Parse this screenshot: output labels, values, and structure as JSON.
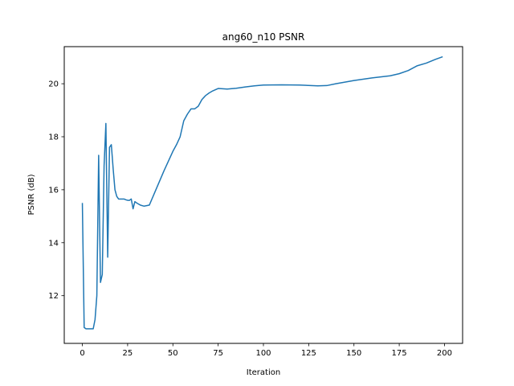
{
  "chart_data": {
    "type": "line",
    "title": "ang60_n10 PSNR",
    "xlabel": "Iteration",
    "ylabel": "PSNR (dB)",
    "xlim": [
      -10,
      210
    ],
    "ylim": [
      10.2,
      21.4
    ],
    "xticks": [
      0,
      25,
      50,
      75,
      100,
      125,
      150,
      175,
      200
    ],
    "yticks": [
      12,
      14,
      16,
      18,
      20
    ],
    "grid": false,
    "series": [
      {
        "color": "#1f77b4",
        "x": [
          0,
          1,
          2,
          3,
          4,
          5,
          6,
          7,
          8,
          9,
          10,
          11,
          12,
          13,
          14,
          15,
          16,
          17,
          18,
          19,
          20,
          21,
          22,
          23,
          24,
          25,
          26,
          27,
          28,
          29,
          30,
          32,
          34,
          37,
          40,
          45,
          50,
          52,
          54,
          56,
          58,
          60,
          62,
          64,
          66,
          68,
          70,
          72,
          75,
          80,
          85,
          90,
          95,
          100,
          110,
          120,
          130,
          135,
          140,
          150,
          160,
          170,
          175,
          180,
          185,
          190,
          195,
          199
        ],
        "y": [
          15.5,
          10.8,
          10.75,
          10.75,
          10.75,
          10.75,
          10.75,
          11.1,
          12.0,
          17.3,
          12.5,
          12.8,
          16.9,
          18.5,
          13.45,
          17.6,
          17.7,
          16.8,
          16.0,
          15.75,
          15.65,
          15.65,
          15.65,
          15.65,
          15.62,
          15.6,
          15.6,
          15.65,
          15.28,
          15.55,
          15.5,
          15.42,
          15.38,
          15.42,
          15.9,
          16.7,
          17.45,
          17.7,
          18.0,
          18.6,
          18.85,
          19.05,
          19.05,
          19.15,
          19.4,
          19.55,
          19.65,
          19.73,
          19.82,
          19.8,
          19.83,
          19.88,
          19.92,
          19.95,
          19.96,
          19.95,
          19.92,
          19.93,
          20.0,
          20.12,
          20.22,
          20.3,
          20.38,
          20.5,
          20.68,
          20.78,
          20.92,
          21.02
        ]
      }
    ]
  }
}
